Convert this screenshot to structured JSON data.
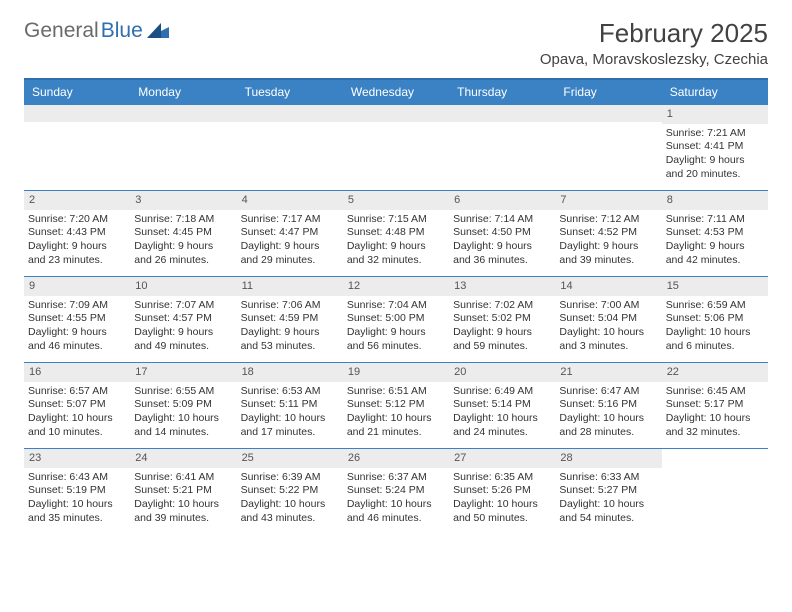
{
  "brand": {
    "name_gray": "General",
    "name_blue": "Blue"
  },
  "title": {
    "month": "February 2025",
    "location": "Opava, Moravskoslezsky, Czechia"
  },
  "colors": {
    "header_bg": "#3a82c4",
    "header_text": "#ffffff",
    "border": "#3a82c4",
    "daynum_bg": "#ececec",
    "text": "#333333",
    "brand_gray": "#6a6a6a",
    "brand_blue": "#2f6fb0"
  },
  "weekday_labels": [
    "Sunday",
    "Monday",
    "Tuesday",
    "Wednesday",
    "Thursday",
    "Friday",
    "Saturday"
  ],
  "labels": {
    "sunrise": "Sunrise:",
    "sunset": "Sunset:",
    "daylight": "Daylight:"
  },
  "weeks": [
    [
      null,
      null,
      null,
      null,
      null,
      null,
      {
        "n": "1",
        "sr": "7:21 AM",
        "ss": "4:41 PM",
        "dl": "9 hours and 20 minutes."
      }
    ],
    [
      {
        "n": "2",
        "sr": "7:20 AM",
        "ss": "4:43 PM",
        "dl": "9 hours and 23 minutes."
      },
      {
        "n": "3",
        "sr": "7:18 AM",
        "ss": "4:45 PM",
        "dl": "9 hours and 26 minutes."
      },
      {
        "n": "4",
        "sr": "7:17 AM",
        "ss": "4:47 PM",
        "dl": "9 hours and 29 minutes."
      },
      {
        "n": "5",
        "sr": "7:15 AM",
        "ss": "4:48 PM",
        "dl": "9 hours and 32 minutes."
      },
      {
        "n": "6",
        "sr": "7:14 AM",
        "ss": "4:50 PM",
        "dl": "9 hours and 36 minutes."
      },
      {
        "n": "7",
        "sr": "7:12 AM",
        "ss": "4:52 PM",
        "dl": "9 hours and 39 minutes."
      },
      {
        "n": "8",
        "sr": "7:11 AM",
        "ss": "4:53 PM",
        "dl": "9 hours and 42 minutes."
      }
    ],
    [
      {
        "n": "9",
        "sr": "7:09 AM",
        "ss": "4:55 PM",
        "dl": "9 hours and 46 minutes."
      },
      {
        "n": "10",
        "sr": "7:07 AM",
        "ss": "4:57 PM",
        "dl": "9 hours and 49 minutes."
      },
      {
        "n": "11",
        "sr": "7:06 AM",
        "ss": "4:59 PM",
        "dl": "9 hours and 53 minutes."
      },
      {
        "n": "12",
        "sr": "7:04 AM",
        "ss": "5:00 PM",
        "dl": "9 hours and 56 minutes."
      },
      {
        "n": "13",
        "sr": "7:02 AM",
        "ss": "5:02 PM",
        "dl": "9 hours and 59 minutes."
      },
      {
        "n": "14",
        "sr": "7:00 AM",
        "ss": "5:04 PM",
        "dl": "10 hours and 3 minutes."
      },
      {
        "n": "15",
        "sr": "6:59 AM",
        "ss": "5:06 PM",
        "dl": "10 hours and 6 minutes."
      }
    ],
    [
      {
        "n": "16",
        "sr": "6:57 AM",
        "ss": "5:07 PM",
        "dl": "10 hours and 10 minutes."
      },
      {
        "n": "17",
        "sr": "6:55 AM",
        "ss": "5:09 PM",
        "dl": "10 hours and 14 minutes."
      },
      {
        "n": "18",
        "sr": "6:53 AM",
        "ss": "5:11 PM",
        "dl": "10 hours and 17 minutes."
      },
      {
        "n": "19",
        "sr": "6:51 AM",
        "ss": "5:12 PM",
        "dl": "10 hours and 21 minutes."
      },
      {
        "n": "20",
        "sr": "6:49 AM",
        "ss": "5:14 PM",
        "dl": "10 hours and 24 minutes."
      },
      {
        "n": "21",
        "sr": "6:47 AM",
        "ss": "5:16 PM",
        "dl": "10 hours and 28 minutes."
      },
      {
        "n": "22",
        "sr": "6:45 AM",
        "ss": "5:17 PM",
        "dl": "10 hours and 32 minutes."
      }
    ],
    [
      {
        "n": "23",
        "sr": "6:43 AM",
        "ss": "5:19 PM",
        "dl": "10 hours and 35 minutes."
      },
      {
        "n": "24",
        "sr": "6:41 AM",
        "ss": "5:21 PM",
        "dl": "10 hours and 39 minutes."
      },
      {
        "n": "25",
        "sr": "6:39 AM",
        "ss": "5:22 PM",
        "dl": "10 hours and 43 minutes."
      },
      {
        "n": "26",
        "sr": "6:37 AM",
        "ss": "5:24 PM",
        "dl": "10 hours and 46 minutes."
      },
      {
        "n": "27",
        "sr": "6:35 AM",
        "ss": "5:26 PM",
        "dl": "10 hours and 50 minutes."
      },
      {
        "n": "28",
        "sr": "6:33 AM",
        "ss": "5:27 PM",
        "dl": "10 hours and 54 minutes."
      },
      null
    ]
  ]
}
